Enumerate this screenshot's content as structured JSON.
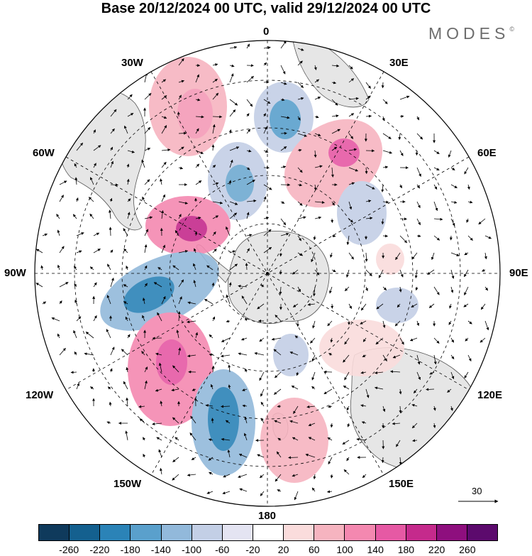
{
  "header": {
    "title": "Base 20/12/2024 00 UTC, valid 29/12/2024 00 UTC",
    "brand": "MODES",
    "brand_mark": "©"
  },
  "longitudes": {
    "top": "0",
    "bottom": "180",
    "left": "90W",
    "right": "90E",
    "w30": "30W",
    "e30": "30E",
    "w60": "60W",
    "e60": "60E",
    "w120": "120W",
    "e120": "120E",
    "w150": "150W",
    "e150": "150E"
  },
  "vector_scale": {
    "label": "30"
  },
  "colorbar": {
    "colors": [
      "#0f3a5c",
      "#14608f",
      "#2b83b7",
      "#5aa0cc",
      "#92b9db",
      "#c3cfe6",
      "#e4e4f2",
      "#ffffff",
      "#fadcdc",
      "#f6b4c0",
      "#f488b0",
      "#e659a4",
      "#c52a8c",
      "#8e0f7e",
      "#5c0a6d"
    ],
    "ticks": [
      "-260",
      "-220",
      "-180",
      "-140",
      "-100",
      "-60",
      "-20",
      "20",
      "60",
      "100",
      "140",
      "180",
      "220",
      "260"
    ]
  },
  "anomalies": [
    {
      "color": "#f6b4c0",
      "center": "Weddell sea / 30W"
    },
    {
      "color": "#5aa0cc",
      "center": "0 longitude, 50S"
    },
    {
      "color": "#f488b0",
      "center": "50E"
    },
    {
      "color": "#5aa0cc",
      "center": "South Pacific 95W"
    },
    {
      "color": "#e659a4",
      "center": "Antarctic Peninsula"
    },
    {
      "color": "#e659a4",
      "center": "130W"
    },
    {
      "color": "#2b83b7",
      "center": "165W"
    },
    {
      "color": "#f6b4c0",
      "center": "170E"
    }
  ]
}
